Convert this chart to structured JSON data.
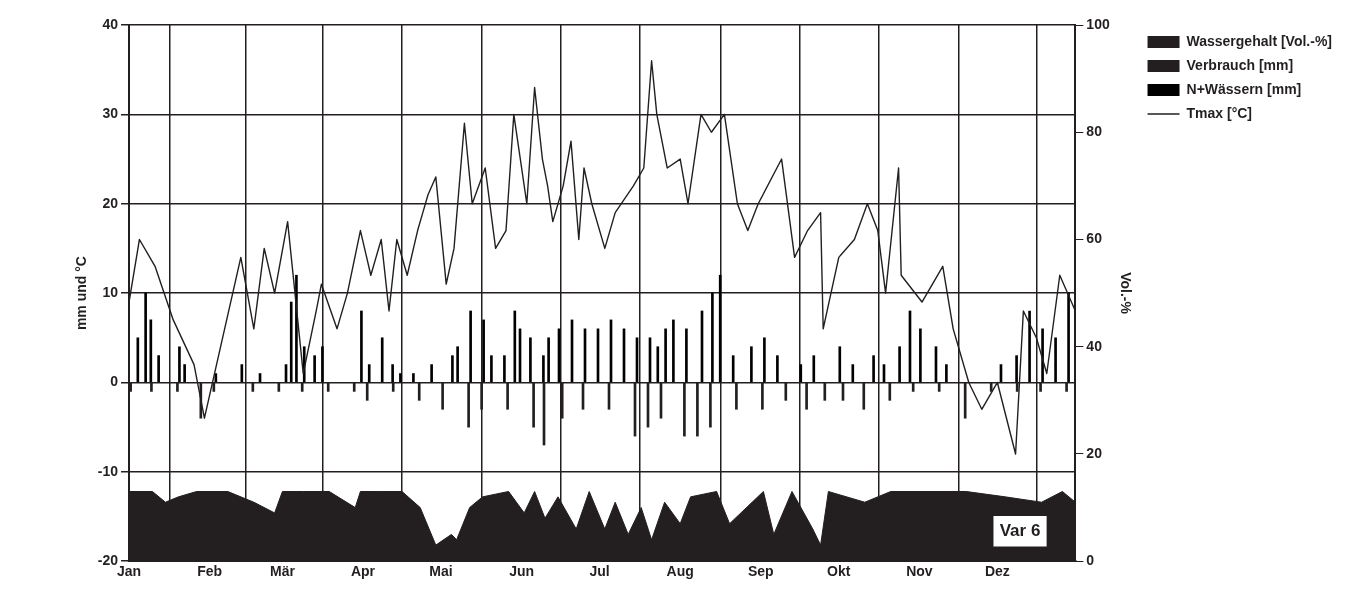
{
  "chart_data": {
    "type": "line",
    "ylabel": "mm und °C",
    "y2label": "Vol.-%",
    "xlim": [
      "--01-01",
      "--12-31"
    ],
    "xticks": [
      {
        "value": "--01-01",
        "label": "Jan"
      },
      {
        "value": "--02-01",
        "label": "Feb"
      },
      {
        "value": "--03-01",
        "label": "Mär"
      },
      {
        "value": "--04-01",
        "label": "Apr"
      },
      {
        "value": "--05-01",
        "label": "Mai"
      },
      {
        "value": "--06-01",
        "label": "Jun"
      },
      {
        "value": "--07-01",
        "label": "Jul"
      },
      {
        "value": "--08-01",
        "label": "Aug"
      },
      {
        "value": "--09-01",
        "label": "Sep"
      },
      {
        "value": "--10-01",
        "label": "Okt"
      },
      {
        "value": "--11-01",
        "label": "Nov"
      },
      {
        "value": "--12-01",
        "label": "Dez"
      }
    ],
    "ylim": [
      -20,
      40
    ],
    "yticks": [
      -20,
      -10,
      0,
      10,
      20,
      30,
      40
    ],
    "y2lim": [
      0,
      100
    ],
    "y2ticks": [
      0,
      20,
      40,
      60,
      80,
      100
    ],
    "grid": true,
    "legend": "right",
    "marker": "none",
    "annotations": [
      "Var 6"
    ],
    "series": [
      {
        "type": "area",
        "axis": "y2",
        "name": "Wassergehalt [Vol.-%]",
        "color": "#231f20",
        "x": [
          "--01-01",
          "--01-10",
          "--01-15",
          "--01-20",
          "--01-27",
          "--02-08",
          "--02-18",
          "--02-26",
          "--03-01",
          "--03-09",
          "--03-19",
          "--03-29",
          "--03-31",
          "--04-08",
          "--04-16",
          "--04-23",
          "--04-29",
          "--05-05",
          "--05-07",
          "--05-12",
          "--05-17",
          "--05-27",
          "--06-02",
          "--06-06",
          "--06-10",
          "--06-15",
          "--06-22",
          "--06-27",
          "--07-03",
          "--07-07",
          "--07-12",
          "--07-17",
          "--07-21",
          "--07-26",
          "--08-01",
          "--08-05",
          "--08-15",
          "--08-20",
          "--09-02",
          "--09-06",
          "--09-13",
          "--09-21",
          "--09-24",
          "--09-27",
          "--10-11",
          "--10-21",
          "--11-19",
          "--12-04",
          "--12-18",
          "--12-26",
          "--12-31"
        ],
        "values": [
          13,
          13,
          11,
          12,
          13,
          13,
          11,
          9,
          13,
          13,
          13,
          10,
          13,
          13,
          13,
          10,
          3,
          5,
          4,
          10,
          12,
          13,
          9,
          13,
          8,
          12,
          6,
          13,
          6,
          11,
          5,
          10,
          4,
          11,
          7,
          12,
          13,
          7,
          13,
          5,
          13,
          6,
          3,
          13,
          11,
          13,
          13,
          12,
          11,
          13,
          11
        ]
      },
      {
        "type": "bar",
        "name": "Verbrauch [mm]",
        "color": "#231f20",
        "x": [
          "--01-02",
          "--01-10",
          "--01-20",
          "--01-29",
          "--02-03",
          "--02-18",
          "--02-28",
          "--03-09",
          "--03-19",
          "--03-29",
          "--04-03",
          "--04-13",
          "--04-23",
          "--05-02",
          "--05-12",
          "--05-17",
          "--05-27",
          "--06-06",
          "--06-10",
          "--06-17",
          "--06-25",
          "--07-05",
          "--07-15",
          "--07-20",
          "--07-25",
          "--08-03",
          "--08-08",
          "--08-13",
          "--08-23",
          "--09-02",
          "--09-11",
          "--09-19",
          "--09-26",
          "--10-03",
          "--10-11",
          "--10-21",
          "--10-30",
          "--11-09",
          "--11-19",
          "--11-29",
          "--12-09",
          "--12-18",
          "--12-28"
        ],
        "values": [
          -1,
          -1,
          -1,
          -4,
          -1,
          -1,
          -1,
          -1,
          -1,
          -1,
          -2,
          -1,
          -2,
          -3,
          -5,
          -3,
          -3,
          -5,
          -7,
          -4,
          -3,
          -3,
          -6,
          -5,
          -4,
          -6,
          -6,
          -5,
          -3,
          -3,
          -2,
          -3,
          -2,
          -2,
          -3,
          -2,
          -1,
          -1,
          -4,
          -1,
          -1,
          -1,
          -1
        ]
      },
      {
        "type": "bar",
        "name": "N+Wässern [mm]",
        "color": "#000000",
        "x": [
          "--01-04",
          "--01-07",
          "--01-09",
          "--01-12",
          "--01-20",
          "--01-22",
          "--02-03",
          "--02-13",
          "--02-20",
          "--03-02",
          "--03-04",
          "--03-06",
          "--03-09",
          "--03-13",
          "--03-16",
          "--03-31",
          "--04-03",
          "--04-08",
          "--04-12",
          "--04-15",
          "--04-20",
          "--04-27",
          "--05-05",
          "--05-07",
          "--05-12",
          "--05-17",
          "--05-20",
          "--05-25",
          "--05-29",
          "--05-31",
          "--06-04",
          "--06-09",
          "--06-11",
          "--06-15",
          "--06-20",
          "--06-25",
          "--06-30",
          "--07-05",
          "--07-10",
          "--07-15",
          "--07-20",
          "--07-23",
          "--07-26",
          "--07-29",
          "--08-03",
          "--08-09",
          "--08-13",
          "--08-16",
          "--08-21",
          "--08-28",
          "--09-02",
          "--09-07",
          "--09-16",
          "--09-21",
          "--10-01",
          "--10-06",
          "--10-14",
          "--10-18",
          "--10-24",
          "--10-28",
          "--11-01",
          "--11-07",
          "--11-11",
          "--12-02",
          "--12-08",
          "--12-13",
          "--12-18",
          "--12-23",
          "--12-28"
        ],
        "values": [
          5,
          10,
          7,
          3,
          4,
          2,
          1,
          2,
          1,
          2,
          9,
          12,
          4,
          3,
          4,
          8,
          2,
          5,
          2,
          1,
          1,
          2,
          3,
          4,
          8,
          7,
          3,
          3,
          8,
          6,
          5,
          3,
          5,
          6,
          7,
          6,
          6,
          7,
          6,
          5,
          5,
          4,
          6,
          7,
          6,
          8,
          10,
          12,
          3,
          4,
          5,
          3,
          2,
          3,
          4,
          2,
          3,
          2,
          4,
          8,
          6,
          4,
          2,
          2,
          3,
          8,
          6,
          5,
          10
        ]
      },
      {
        "name": "Tmax [°C]",
        "color": "#231f20",
        "x": [
          "--01-01",
          "--01-05",
          "--01-11",
          "--01-18",
          "--01-26",
          "--01-30",
          "--02-13",
          "--02-18",
          "--02-22",
          "--02-26",
          "--03-03",
          "--03-09",
          "--03-14",
          "--03-16",
          "--03-22",
          "--03-26",
          "--03-31",
          "--04-04",
          "--04-08",
          "--04-11",
          "--04-14",
          "--04-18",
          "--04-22",
          "--04-24",
          "--04-26",
          "--04-29",
          "--05-03",
          "--05-06",
          "--05-10",
          "--05-13",
          "--05-18",
          "--05-22",
          "--05-26",
          "--05-29",
          "--06-03",
          "--06-06",
          "--06-09",
          "--06-11",
          "--06-13",
          "--06-17",
          "--06-20",
          "--06-23",
          "--06-25",
          "--06-28",
          "--07-03",
          "--07-07",
          "--07-14",
          "--07-18",
          "--07-21",
          "--07-23",
          "--07-27",
          "--08-01",
          "--08-04",
          "--08-09",
          "--08-13",
          "--08-18",
          "--08-23",
          "--08-27",
          "--08-31",
          "--09-09",
          "--09-14",
          "--09-19",
          "--09-24",
          "--09-25",
          "--10-01",
          "--10-07",
          "--10-12",
          "--10-16",
          "--10-19",
          "--10-24",
          "--10-25",
          "--11-02",
          "--11-10",
          "--11-14",
          "--11-20",
          "--11-25",
          "--12-01",
          "--12-08",
          "--12-11",
          "--12-16",
          "--12-20",
          "--12-25",
          "--12-31"
        ],
        "values": [
          9,
          16,
          13,
          7,
          2,
          -4,
          14,
          6,
          15,
          10,
          18,
          1,
          8,
          11,
          6,
          10,
          17,
          12,
          16,
          8,
          16,
          12,
          17,
          19,
          21,
          23,
          11,
          15,
          29,
          20,
          24,
          15,
          17,
          30,
          20,
          33,
          25,
          22,
          18,
          22,
          27,
          16,
          24,
          20,
          15,
          19,
          22,
          24,
          36,
          30,
          24,
          25,
          20,
          30,
          28,
          30,
          20,
          17,
          20,
          25,
          14,
          17,
          19,
          6,
          14,
          16,
          20,
          17,
          10,
          24,
          12,
          9,
          13,
          6,
          0,
          -3,
          0,
          -8,
          8,
          5,
          1,
          12,
          8
        ]
      }
    ]
  }
}
